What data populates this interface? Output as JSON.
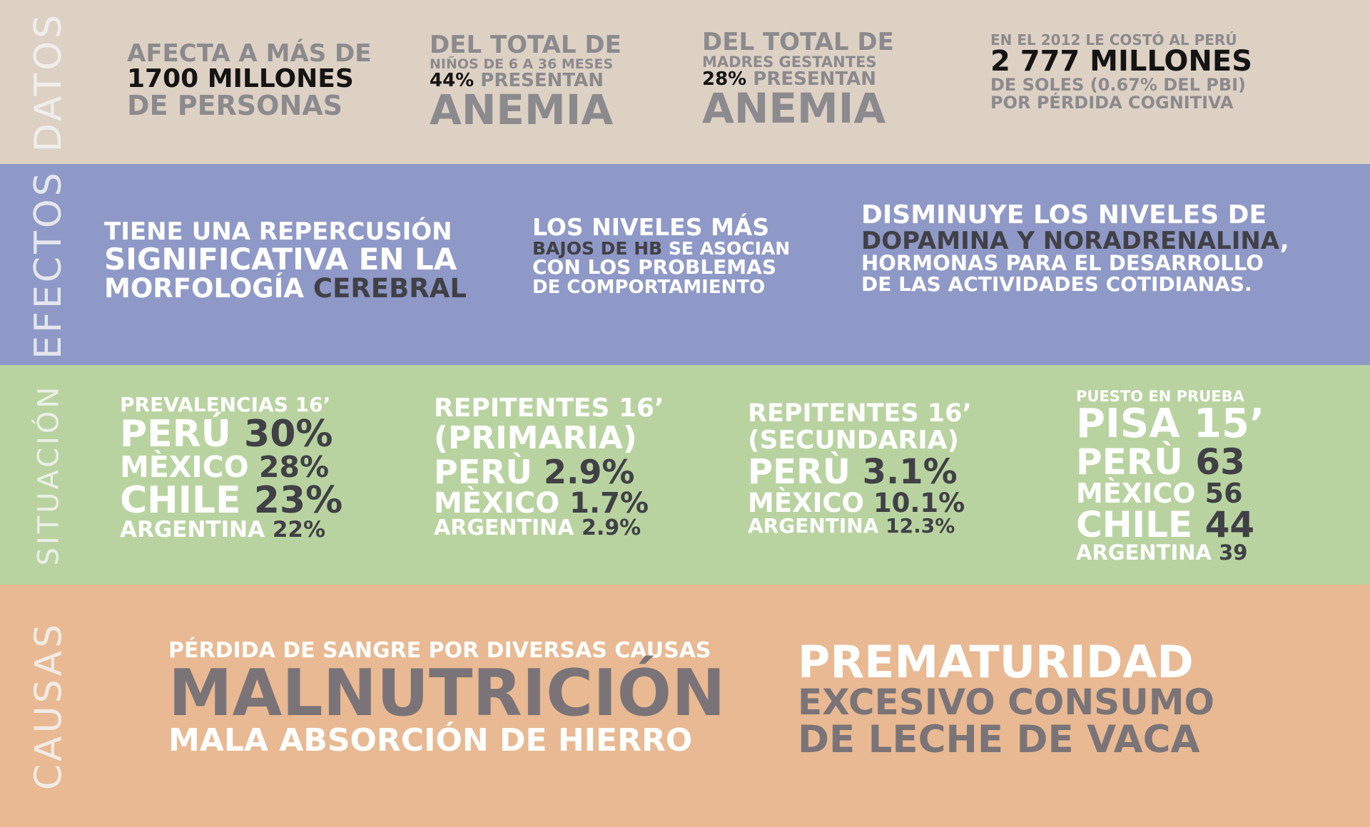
{
  "colors": {
    "datos_bg": "#ddd1c4",
    "efectos_bg": "#8f99c7",
    "situacion_bg": "#b8d3a0",
    "causas_bg": "#e8b992"
  },
  "datos": {
    "label": "DATOS",
    "block1": {
      "line1": "AFECTA A MÁS DE",
      "line2": "1700 MILLONES",
      "line3": "DE PERSONAS"
    },
    "block2": {
      "line1": "DEL TOTAL DE",
      "line2": "NIÑOS DE 6 A 36 MESES",
      "pct": "44%",
      "present": "PRESENTAN",
      "big": "ANEMIA"
    },
    "block3": {
      "line1": "DEL TOTAL DE",
      "line2": "MADRES GESTANTES",
      "pct": "28%",
      "present": "PRESENTAN",
      "big": "ANEMIA"
    },
    "block4": {
      "line1": "EN EL 2012 LE COSTÓ AL PERÚ",
      "line2": "2 777 MILLONES",
      "line3": "DE SOLES (0.67% DEL PBI)",
      "line4": "POR PÉRDIDA COGNITIVA"
    }
  },
  "efectos": {
    "label": "EFECTOS",
    "block1": {
      "line1": "TIENE UNA REPERCUSIÓN",
      "line2": "SIGNIFICATIVA EN LA",
      "line3a": "MORFOLOGÍA",
      "line3b": "CEREBRAL"
    },
    "block2": {
      "line1": "LOS NIVELES MÁS",
      "line2a": "BAJOS DE HB",
      "line2b": "SE ASOCIAN",
      "line3": "CON LOS PROBLEMAS",
      "line4": "DE COMPORTAMIENTO"
    },
    "block3": {
      "line1": "DISMINUYE LOS NIVELES DE",
      "line2a": "DOPAMINA Y NORADRENALINA",
      "line2b": ",",
      "line3": "HORMONAS PARA EL DESARROLLO",
      "line4": "DE LAS ACTIVIDADES COTIDIANAS."
    }
  },
  "situacion": {
    "label": "SITUACIÓN",
    "col1": {
      "head": "PREVALENCIAS 16’",
      "rows": [
        {
          "country": "PERÚ",
          "value": "30%"
        },
        {
          "country": "MÈXICO",
          "value": "28%"
        },
        {
          "country": "CHILE",
          "value": "23%"
        },
        {
          "country": "ARGENTINA",
          "value": "22%"
        }
      ]
    },
    "col2": {
      "head1": "REPITENTES 16’",
      "head2": "(PRIMARIA)",
      "rows": [
        {
          "country": "PERÙ",
          "value": "2.9%"
        },
        {
          "country": "MÈXICO",
          "value": "1.7%"
        },
        {
          "country": "ARGENTINA",
          "value": "2.9%"
        }
      ]
    },
    "col3": {
      "head1": "REPITENTES 16’",
      "head2": "(SECUNDARIA)",
      "rows": [
        {
          "country": "PERÙ",
          "value": "3.1%"
        },
        {
          "country": "MÈXICO",
          "value": "10.1%"
        },
        {
          "country": "ARGENTINA",
          "value": "12.3%"
        }
      ]
    },
    "col4": {
      "head1": "PUESTO EN PRUEBA",
      "head2": "PISA 15’",
      "rows": [
        {
          "country": "PERÙ",
          "value": "63"
        },
        {
          "country": "MÈXICO",
          "value": "56"
        },
        {
          "country": "CHILE",
          "value": "44"
        },
        {
          "country": "ARGENTINA",
          "value": "39"
        }
      ]
    }
  },
  "causas": {
    "label": "CAUSAS",
    "left": {
      "line1": "PÉRDIDA DE SANGRE POR DIVERSAS CAUSAS",
      "line2": "MALNUTRICIÓN",
      "line3": "MALA ABSORCIÓN DE HIERRO"
    },
    "right": {
      "line1": "PREMATURIDAD",
      "line2": "EXCESIVO CONSUMO",
      "line3": "DE LECHE DE VACA"
    }
  }
}
